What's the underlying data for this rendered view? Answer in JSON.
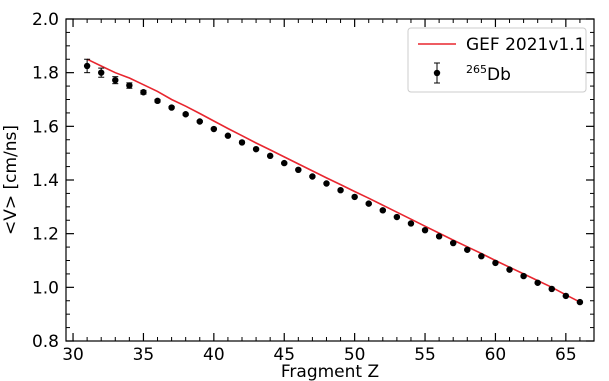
{
  "chart_data": {
    "type": "scatter",
    "xlabel": "Fragment Z",
    "ylabel": "<V> [cm/ns]",
    "xlim": [
      29.5,
      67
    ],
    "ylim": [
      0.8,
      2.0
    ],
    "xticks": [
      "30",
      "35",
      "40",
      "45",
      "50",
      "55",
      "60",
      "65"
    ],
    "yticks": [
      "0.8",
      "1.0",
      "1.2",
      "1.4",
      "1.6",
      "1.8",
      "2.0"
    ],
    "legend_position": "top-right",
    "series": [
      {
        "name": "GEF 2021v1.1",
        "kind": "line",
        "color": "#e8262f",
        "x": [
          31,
          32,
          33,
          34,
          35,
          36,
          37,
          38,
          39,
          40,
          41,
          42,
          43,
          44,
          45,
          46,
          47,
          48,
          49,
          50,
          51,
          52,
          53,
          54,
          55,
          56,
          57,
          58,
          59,
          60,
          61,
          62,
          63,
          64,
          65,
          66
        ],
        "y": [
          1.85,
          1.825,
          1.8,
          1.78,
          1.755,
          1.73,
          1.7,
          1.675,
          1.648,
          1.62,
          1.592,
          1.565,
          1.538,
          1.512,
          1.486,
          1.46,
          1.434,
          1.408,
          1.383,
          1.357,
          1.332,
          1.306,
          1.28,
          1.254,
          1.228,
          1.202,
          1.176,
          1.151,
          1.126,
          1.1,
          1.075,
          1.05,
          1.025,
          1.0,
          0.972,
          0.945
        ]
      },
      {
        "name_prefix": "265",
        "name_main": "Db",
        "kind": "errorbar",
        "color": "#000000",
        "x": [
          31,
          32,
          33,
          34,
          35,
          36,
          37,
          38,
          39,
          40,
          41,
          42,
          43,
          44,
          45,
          46,
          47,
          48,
          49,
          50,
          51,
          52,
          53,
          54,
          55,
          56,
          57,
          58,
          59,
          60,
          61,
          62,
          63,
          64,
          65,
          66
        ],
        "y": [
          1.825,
          1.8,
          1.772,
          1.752,
          1.727,
          1.695,
          1.67,
          1.645,
          1.618,
          1.59,
          1.565,
          1.54,
          1.515,
          1.49,
          1.463,
          1.438,
          1.413,
          1.387,
          1.362,
          1.337,
          1.312,
          1.287,
          1.262,
          1.238,
          1.213,
          1.19,
          1.165,
          1.14,
          1.116,
          1.091,
          1.066,
          1.042,
          1.017,
          0.994,
          0.968,
          0.945
        ],
        "yerr": [
          0.025,
          0.017,
          0.013,
          0.01,
          0.007,
          0.005,
          0.004,
          0.004,
          0.003,
          0.003,
          0.003,
          0.003,
          0.003,
          0.003,
          0.003,
          0.003,
          0.003,
          0.003,
          0.003,
          0.003,
          0.003,
          0.003,
          0.003,
          0.003,
          0.003,
          0.003,
          0.003,
          0.003,
          0.003,
          0.003,
          0.003,
          0.003,
          0.003,
          0.003,
          0.003,
          0.003
        ]
      }
    ]
  }
}
